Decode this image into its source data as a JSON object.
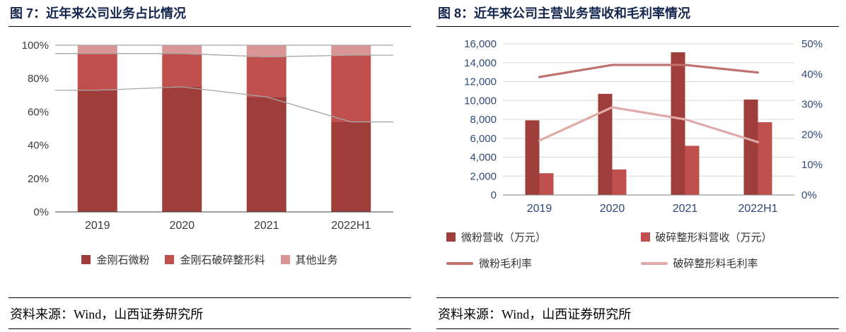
{
  "panels": [
    {
      "title": "图 7：近年来公司业务占比情况",
      "source": "资料来源：Wind，山西证券研究所"
    },
    {
      "title": "图 8：近年来公司主营业务营收和毛利率情况",
      "source": "资料来源：Wind，山西证券研究所"
    }
  ],
  "chart_data": [
    {
      "type": "bar",
      "subtype": "stacked-100-percent",
      "title": "近年来公司业务占比情况",
      "categories": [
        "2019",
        "2020",
        "2021",
        "2022H1"
      ],
      "series": [
        {
          "name": "金刚石微粉",
          "color": "#9e3d3a",
          "values": [
            73,
            75,
            69,
            54
          ]
        },
        {
          "name": "金刚石破碎整形料",
          "color": "#c0504d",
          "values": [
            22,
            20,
            24,
            40
          ]
        },
        {
          "name": "其他业务",
          "color": "#d99694",
          "values": [
            5,
            5,
            7,
            6
          ]
        }
      ],
      "y_ticks": [
        "0%",
        "20%",
        "40%",
        "60%",
        "80%",
        "100%"
      ],
      "ylim": [
        0,
        100
      ],
      "connector_color": "#a6a6a6",
      "grid": false,
      "legend_position": "bottom"
    },
    {
      "type": "bar",
      "subtype": "grouped-bar-with-lines-dual-axis",
      "title": "近年来公司主营业务营收和毛利率情况",
      "categories": [
        "2019",
        "2020",
        "2021",
        "2022H1"
      ],
      "bar_series": [
        {
          "name": "微粉营收（万元）",
          "color": "#9e3d3a",
          "values": [
            7900,
            10700,
            15100,
            10100
          ]
        },
        {
          "name": "破碎整形料营收（万元）",
          "color": "#c0504d",
          "values": [
            2300,
            2700,
            5200,
            7700
          ]
        }
      ],
      "line_series": [
        {
          "name": "微粉毛利率",
          "color": "#c0706d",
          "values": [
            39,
            43,
            43,
            40.5
          ]
        },
        {
          "name": "破碎整形料毛利率",
          "color": "#dfaaa8",
          "values": [
            18,
            29,
            25,
            17.5
          ]
        }
      ],
      "left_ticks": [
        "0",
        "2,000",
        "4,000",
        "6,000",
        "8,000",
        "10,000",
        "12,000",
        "14,000",
        "16,000"
      ],
      "right_ticks": [
        "0%",
        "10%",
        "20%",
        "30%",
        "40%",
        "50%"
      ],
      "left_ylim": [
        0,
        16000
      ],
      "right_ylim": [
        0,
        50
      ],
      "grid": true,
      "legend_position": "bottom"
    }
  ]
}
